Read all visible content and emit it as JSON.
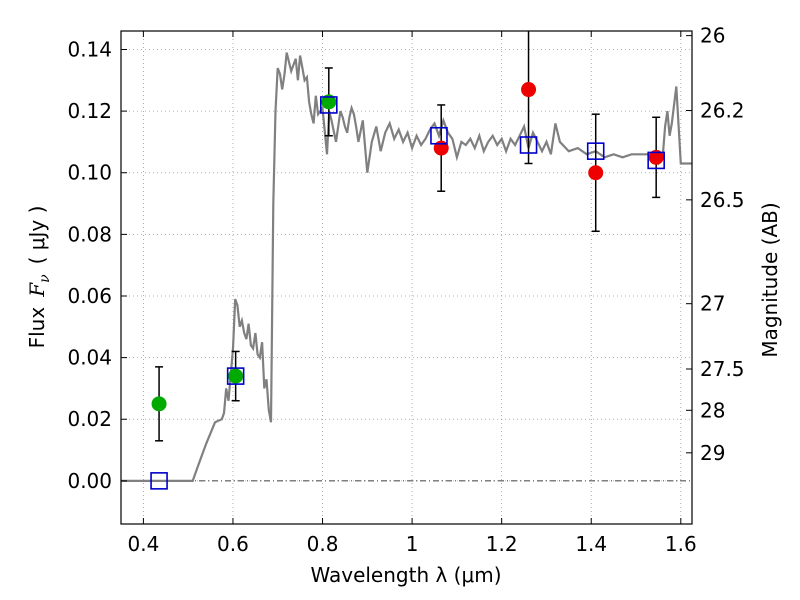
{
  "chart_data": {
    "type": "scatter",
    "xlabel": "Wavelength  λ (μm)",
    "ylabel_text": "Flux",
    "ylabel_math": "F",
    "ylabel_sub": "ν",
    "ylabel_unit": "( μJy )",
    "y2label": "Magnitude (AB)",
    "xlim": [
      0.35,
      1.625
    ],
    "ylim": [
      -0.014,
      0.146
    ],
    "grid": true,
    "x_ticks": [
      0.4,
      0.6,
      0.8,
      1.0,
      1.2,
      1.4,
      1.6
    ],
    "x_tick_labels": [
      "0.4",
      "0.6",
      "0.8",
      "1",
      "1.2",
      "1.4",
      "1.6"
    ],
    "y_ticks": [
      0.0,
      0.02,
      0.04,
      0.06,
      0.08,
      0.1,
      0.12,
      0.14
    ],
    "y_tick_labels": [
      "0.00",
      "0.02",
      "0.04",
      "0.06",
      "0.08",
      "0.10",
      "0.12",
      "0.14"
    ],
    "y2_ticks": [
      {
        "label": "26",
        "flux": 0.1445
      },
      {
        "label": "26.2",
        "flux": 0.1202
      },
      {
        "label": "26.5",
        "flux": 0.0912
      },
      {
        "label": "27",
        "flux": 0.0575
      },
      {
        "label": "27.5",
        "flux": 0.0363
      },
      {
        "label": "28",
        "flux": 0.0229
      },
      {
        "label": "29",
        "flux": 0.0091
      }
    ],
    "colors": {
      "model": "#808080",
      "model_photometry": "#0000cc",
      "detected": "#00aa00",
      "measured": "#ee0000",
      "errorbar": "#000000",
      "grid": "#999999"
    },
    "series": [
      {
        "kind": "model_spectrum",
        "x": [
          0.35,
          0.51,
          0.52,
          0.54,
          0.56,
          0.575,
          0.58,
          0.585,
          0.59,
          0.6,
          0.605,
          0.61,
          0.615,
          0.62,
          0.625,
          0.63,
          0.635,
          0.64,
          0.645,
          0.65,
          0.655,
          0.66,
          0.665,
          0.67,
          0.675,
          0.68,
          0.685,
          0.69,
          0.695,
          0.7,
          0.705,
          0.71,
          0.715,
          0.72,
          0.73,
          0.74,
          0.745,
          0.75,
          0.755,
          0.76,
          0.765,
          0.77,
          0.775,
          0.78,
          0.785,
          0.79,
          0.8,
          0.81,
          0.815,
          0.82,
          0.83,
          0.84,
          0.845,
          0.85,
          0.855,
          0.86,
          0.865,
          0.87,
          0.875,
          0.88,
          0.89,
          0.9,
          0.91,
          0.92,
          0.93,
          0.94,
          0.95,
          0.96,
          0.97,
          0.98,
          0.99,
          1.0,
          1.01,
          1.02,
          1.03,
          1.04,
          1.05,
          1.06,
          1.07,
          1.08,
          1.09,
          1.1,
          1.11,
          1.12,
          1.13,
          1.14,
          1.15,
          1.16,
          1.17,
          1.18,
          1.19,
          1.2,
          1.21,
          1.22,
          1.23,
          1.24,
          1.25,
          1.26,
          1.27,
          1.28,
          1.29,
          1.3,
          1.31,
          1.32,
          1.33,
          1.35,
          1.37,
          1.39,
          1.41,
          1.43,
          1.45,
          1.47,
          1.49,
          1.51,
          1.53,
          1.55,
          1.56,
          1.565,
          1.57,
          1.575,
          1.58,
          1.59,
          1.6,
          1.625
        ],
        "y": [
          0.0,
          0.0,
          0.004,
          0.012,
          0.019,
          0.02,
          0.022,
          0.03,
          0.026,
          0.043,
          0.059,
          0.057,
          0.05,
          0.052,
          0.048,
          0.046,
          0.051,
          0.044,
          0.043,
          0.048,
          0.041,
          0.04,
          0.045,
          0.03,
          0.033,
          0.023,
          0.019,
          0.09,
          0.12,
          0.134,
          0.132,
          0.127,
          0.132,
          0.139,
          0.133,
          0.137,
          0.13,
          0.138,
          0.134,
          0.13,
          0.131,
          0.123,
          0.119,
          0.116,
          0.125,
          0.119,
          0.121,
          0.106,
          0.12,
          0.117,
          0.11,
          0.12,
          0.118,
          0.115,
          0.113,
          0.118,
          0.121,
          0.119,
          0.115,
          0.11,
          0.117,
          0.1,
          0.11,
          0.115,
          0.107,
          0.113,
          0.116,
          0.111,
          0.114,
          0.11,
          0.113,
          0.108,
          0.112,
          0.109,
          0.111,
          0.114,
          0.116,
          0.112,
          0.117,
          0.113,
          0.111,
          0.105,
          0.11,
          0.109,
          0.111,
          0.108,
          0.112,
          0.107,
          0.11,
          0.112,
          0.109,
          0.111,
          0.107,
          0.111,
          0.109,
          0.112,
          0.115,
          0.108,
          0.113,
          0.11,
          0.107,
          0.11,
          0.106,
          0.116,
          0.11,
          0.107,
          0.108,
          0.106,
          0.107,
          0.105,
          0.106,
          0.105,
          0.106,
          0.106,
          0.106,
          0.103,
          0.106,
          0.115,
          0.12,
          0.112,
          0.116,
          0.128,
          0.103,
          0.103
        ]
      },
      {
        "kind": "model_photometry",
        "x": [
          0.435,
          0.606,
          0.814,
          1.06,
          1.26,
          1.41,
          1.545
        ],
        "y": [
          0.0,
          0.034,
          0.122,
          0.112,
          0.109,
          0.107,
          0.104
        ]
      },
      {
        "kind": "detected",
        "points": [
          {
            "x": 0.435,
            "y": 0.025,
            "err": 0.012
          },
          {
            "x": 0.606,
            "y": 0.034,
            "err": 0.008
          },
          {
            "x": 0.814,
            "y": 0.123,
            "err": 0.011
          }
        ]
      },
      {
        "kind": "measured",
        "points": [
          {
            "x": 1.065,
            "y": 0.108,
            "err": 0.014
          },
          {
            "x": 1.26,
            "y": 0.127,
            "err": 0.024
          },
          {
            "x": 1.41,
            "y": 0.1,
            "err": 0.019
          },
          {
            "x": 1.545,
            "y": 0.105,
            "err": 0.013
          }
        ]
      }
    ]
  }
}
